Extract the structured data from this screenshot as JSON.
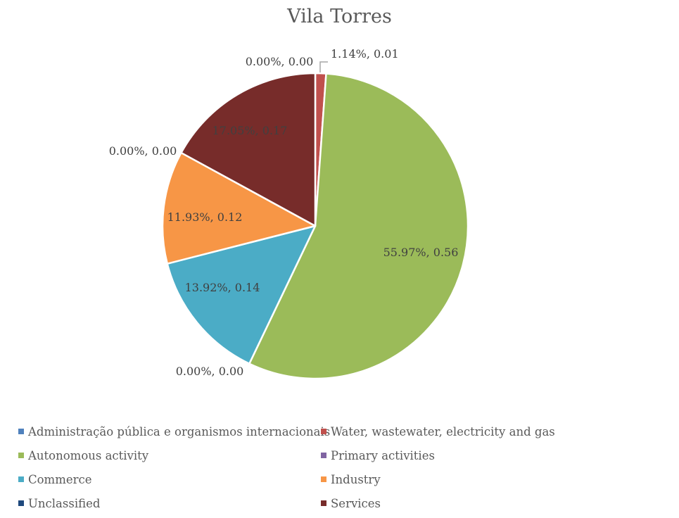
{
  "chart_data": {
    "type": "pie",
    "title": "Vila Torres",
    "slices": [
      {
        "name": "Administração pública e organismos internacionais",
        "value": 0.0,
        "percent": 0.0,
        "label": "0.00%, 0.00",
        "color": "#4F81BD"
      },
      {
        "name": "Water, wastewater, electricity and gas",
        "value": 0.01,
        "percent": 1.14,
        "label": "1.14%, 0.01",
        "color": "#C0504D"
      },
      {
        "name": "Autonomous activity",
        "value": 0.56,
        "percent": 55.97,
        "label": "55.97%, 0.56",
        "color": "#9BBB59"
      },
      {
        "name": "Primary activities",
        "value": 0.0,
        "percent": 0.0,
        "label": "0.00%, 0.00",
        "color": "#8064A2"
      },
      {
        "name": "Commerce",
        "value": 0.14,
        "percent": 13.92,
        "label": "13.92%, 0.14",
        "color": "#4BACC6"
      },
      {
        "name": "Industry",
        "value": 0.12,
        "percent": 11.93,
        "label": "11.93%, 0.12",
        "color": "#F79646"
      },
      {
        "name": "Unclassified",
        "value": 0.0,
        "percent": 0.0,
        "label": "0.00%, 0.00",
        "color": "#1F497D"
      },
      {
        "name": "Services",
        "value": 0.17,
        "percent": 17.05,
        "label": "17.05%, 0.17",
        "color": "#772C2A"
      }
    ],
    "legend_position": "bottom"
  }
}
